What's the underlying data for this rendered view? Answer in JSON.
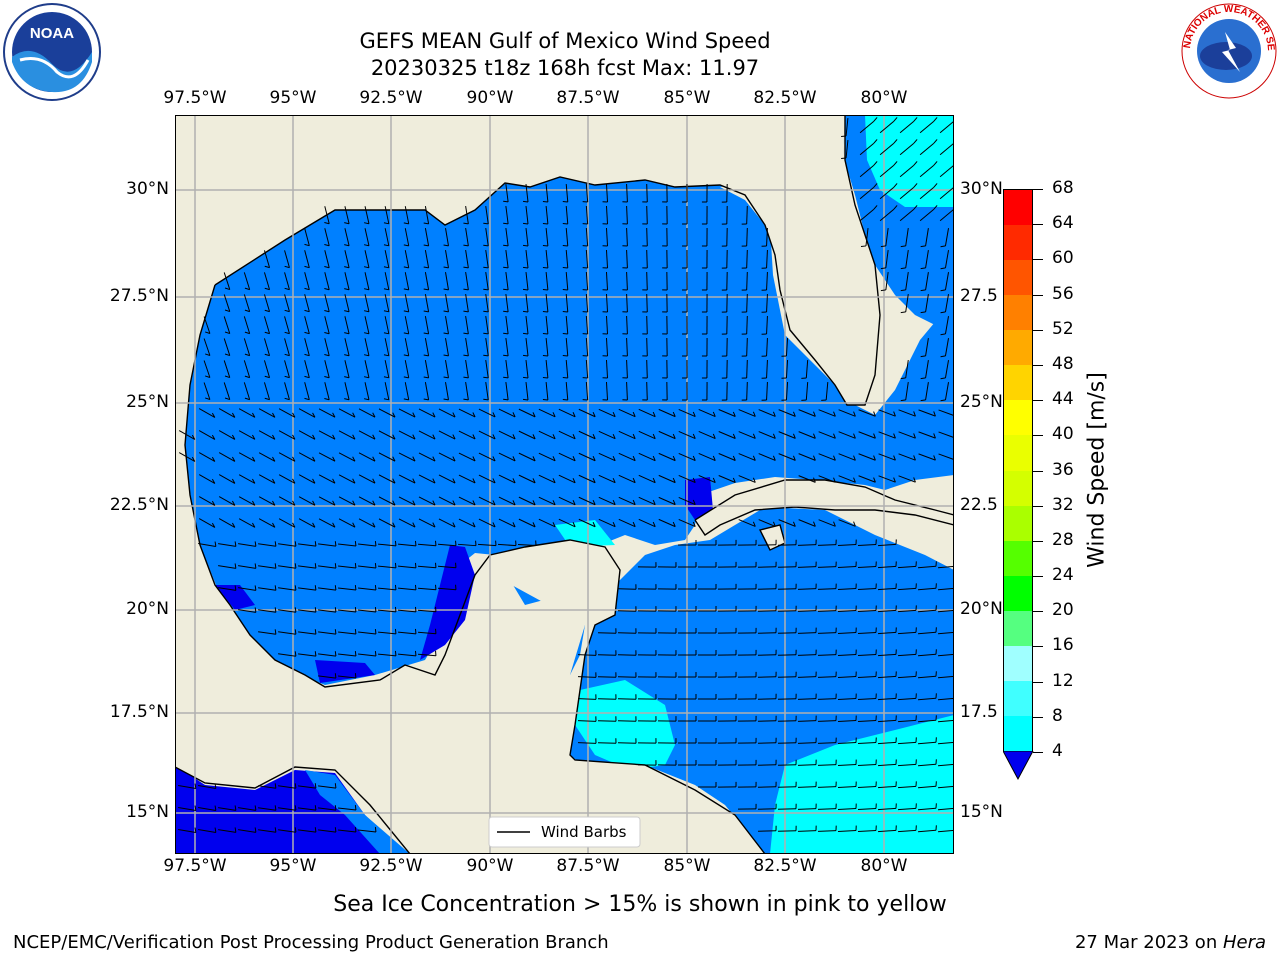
{
  "title": {
    "line1": "GEFS MEAN Gulf of Mexico Wind Speed",
    "line2": "20230325 t18z 168h fcst   Max: 11.97"
  },
  "map": {
    "lon_labels": [
      "97.5°W",
      "95°W",
      "92.5°W",
      "90°W",
      "87.5°W",
      "85°W",
      "82.5°W",
      "80°W"
    ],
    "lat_labels_left": [
      "30°N",
      "27.5°N",
      "25°N",
      "22.5°N",
      "20°N",
      "17.5°N",
      "15°N"
    ],
    "lat_labels_right": [
      "30°N",
      "27.5",
      "25°N",
      "22.5",
      "20°N",
      "17.5",
      "15°N"
    ],
    "legend": "Wind Barbs",
    "colors": {
      "land": "#efeddc",
      "ocean_4_8": "#0080ff",
      "ocean_0_4": "#0000ee",
      "ocean_8_12": "#00ffff",
      "ocean_12_16": "#40ffff",
      "grid": "#b0b0b0"
    }
  },
  "colorbar": {
    "label": "Wind Speed [m/s]",
    "ticks": [
      "68",
      "64",
      "60",
      "56",
      "52",
      "48",
      "44",
      "40",
      "36",
      "32",
      "28",
      "24",
      "20",
      "16",
      "12",
      "8",
      "4"
    ],
    "colors": [
      "#ff0000",
      "#ff2a00",
      "#ff5500",
      "#ff8000",
      "#ffaa00",
      "#ffd400",
      "#ffff00",
      "#eaff00",
      "#d4ff00",
      "#aaff00",
      "#55ff00",
      "#00ff00",
      "#55ff80",
      "#a0ffff",
      "#40ffff",
      "#00ffff",
      "#0080ff"
    ]
  },
  "note": "Sea Ice Concentration > 15% is shown in pink to yellow",
  "footer": {
    "left": "NCEP/EMC/Verification Post Processing Product Generation Branch",
    "date": "27 Mar 2023 on ",
    "machine": "Hera"
  },
  "logos": {
    "left": "NOAA",
    "right": "NATIONAL WEATHER SERVICE"
  }
}
